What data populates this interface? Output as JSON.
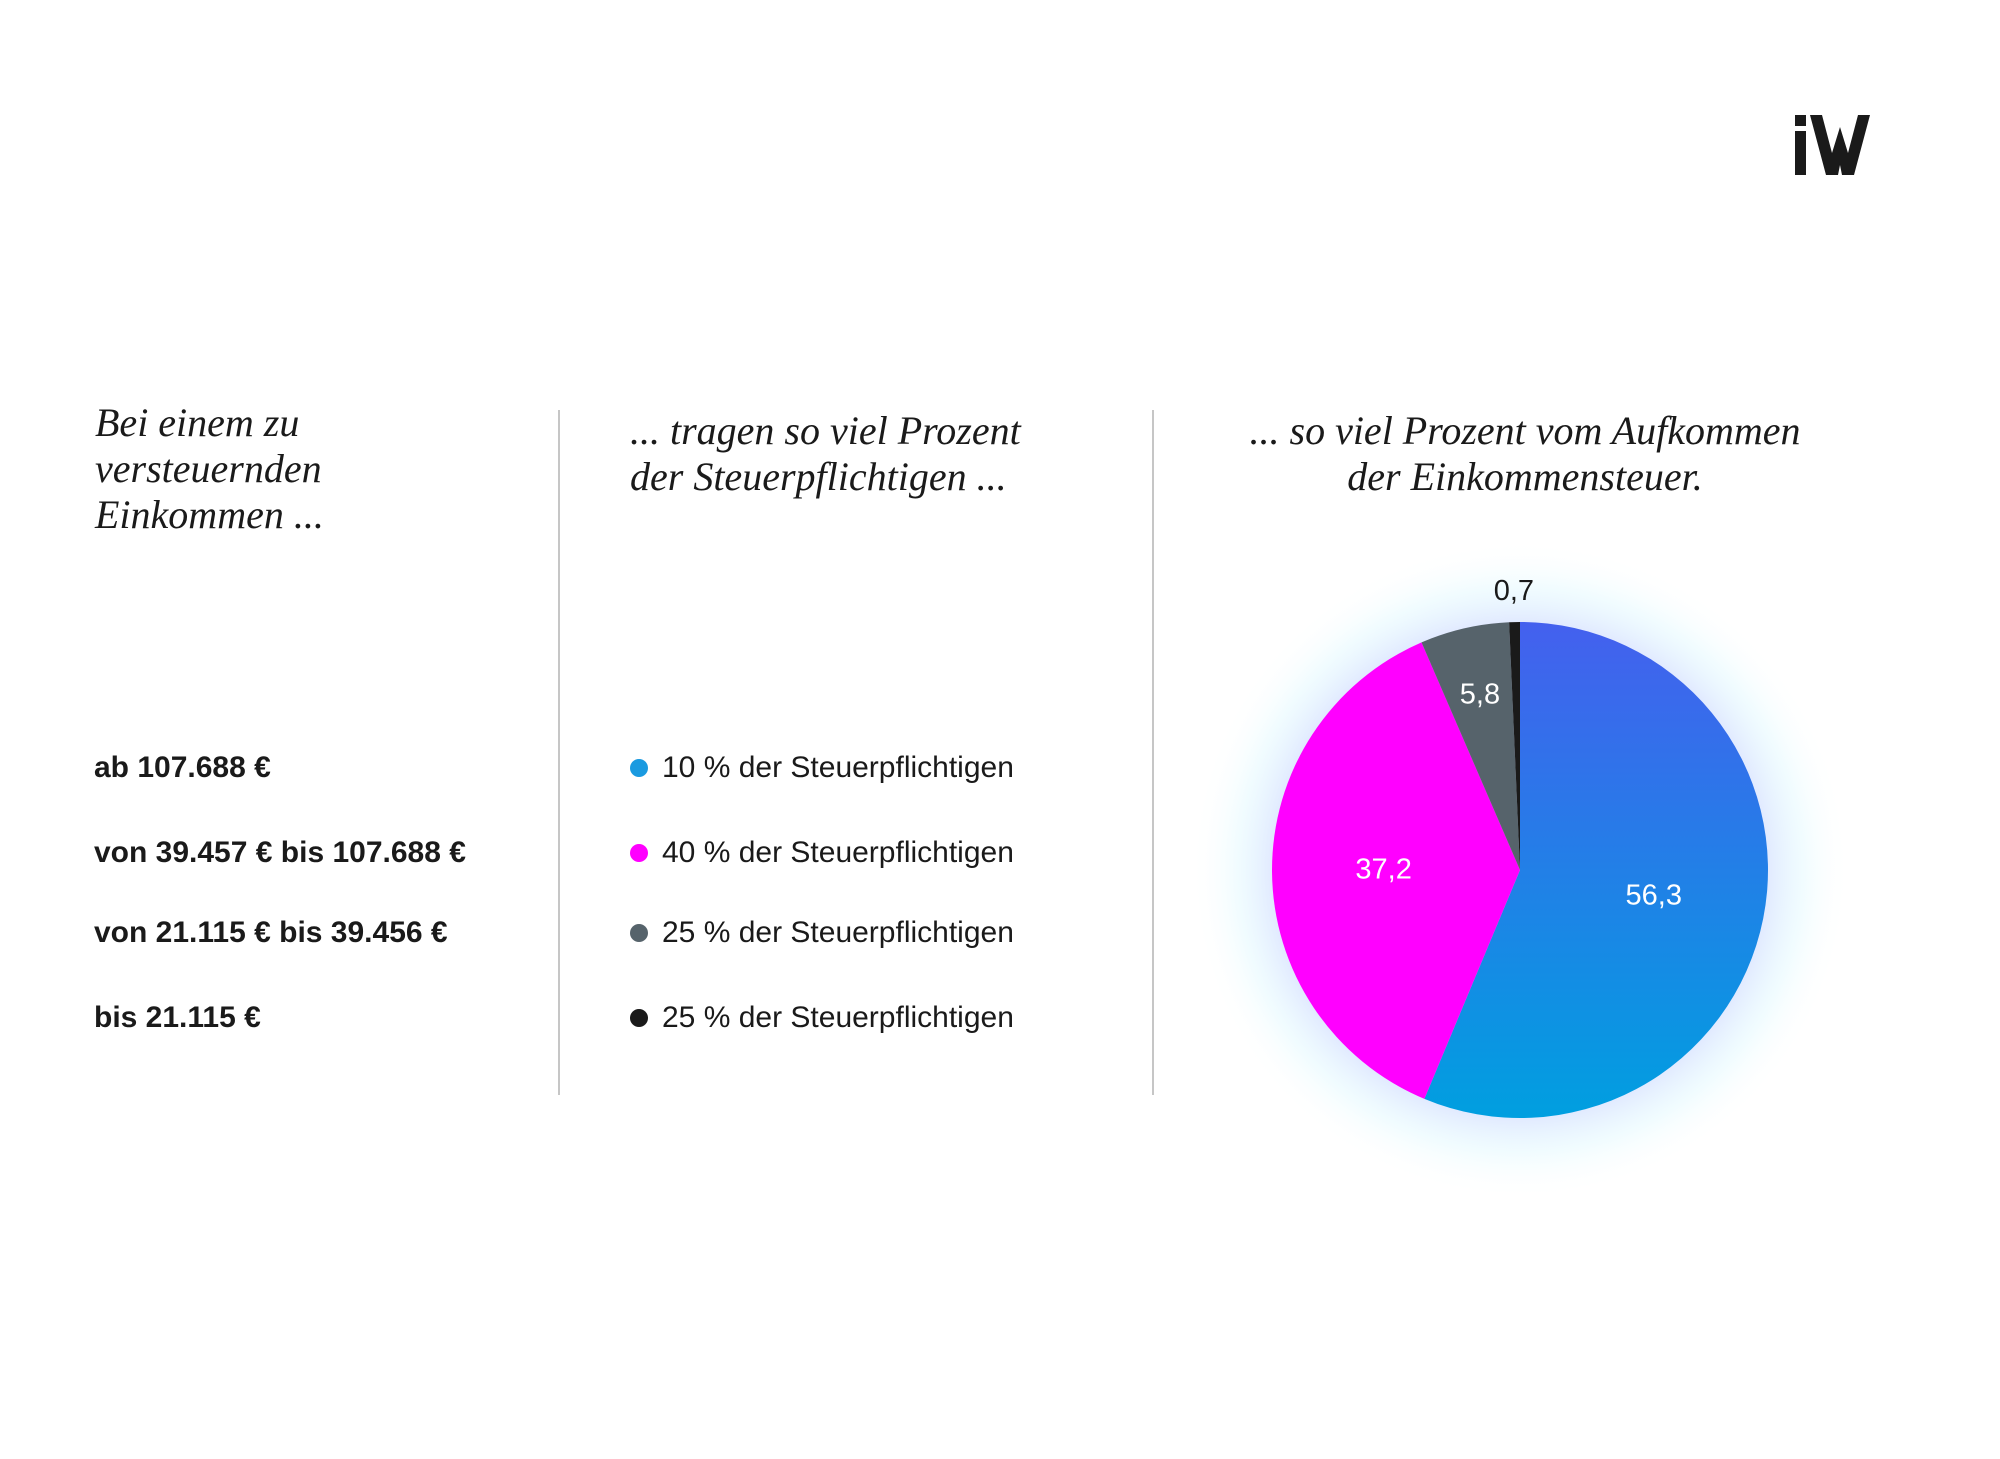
{
  "logo": {
    "text": "iW",
    "icon": "iw-logo-icon"
  },
  "columns": {
    "income_heading": "Bei einem zu\nversteuernden\nEinkommen ...",
    "taxpayers_heading": "... tragen so viel Prozent\nder Steuerpflichtigen ...",
    "revenue_heading": "... so viel Prozent vom Aufkommen\nder Einkommensteuer."
  },
  "rows": [
    {
      "income": "ab 107.688 €",
      "taxpayers": "10 % der Steuerpflichtigen",
      "color": "#1a9ae0"
    },
    {
      "income": "von 39.457 € bis 107.688 €",
      "taxpayers": "40 % der Steuerpflichtigen",
      "color": "#ff00ff"
    },
    {
      "income": "von 21.115 € bis 39.456 €",
      "taxpayers": "25 % der Steuerpflichtigen",
      "color": "#56636b"
    },
    {
      "income": "bis 21.115 €",
      "taxpayers": "25 % der Steuerpflichtigen",
      "color": "#1a1a1a"
    }
  ],
  "chart_data": {
    "type": "pie",
    "title": "... so viel Prozent vom Aufkommen der Einkommensteuer.",
    "slices": [
      {
        "value": 56.3,
        "label": "56,3",
        "color": "#1a9ae0",
        "gradient": [
          "#009fe0",
          "#4460ee"
        ],
        "label_color": "#ffffff"
      },
      {
        "value": 37.2,
        "label": "37,2",
        "color": "#ff00ff",
        "label_color": "#ffffff"
      },
      {
        "value": 5.8,
        "label": "5,8",
        "color": "#56636b",
        "label_color": "#ffffff"
      },
      {
        "value": 0.7,
        "label": "0,7",
        "color": "#1a1a1a",
        "label_color": "#1a1a1a"
      }
    ],
    "start": "12 o'clock",
    "direction": "clockwise"
  }
}
